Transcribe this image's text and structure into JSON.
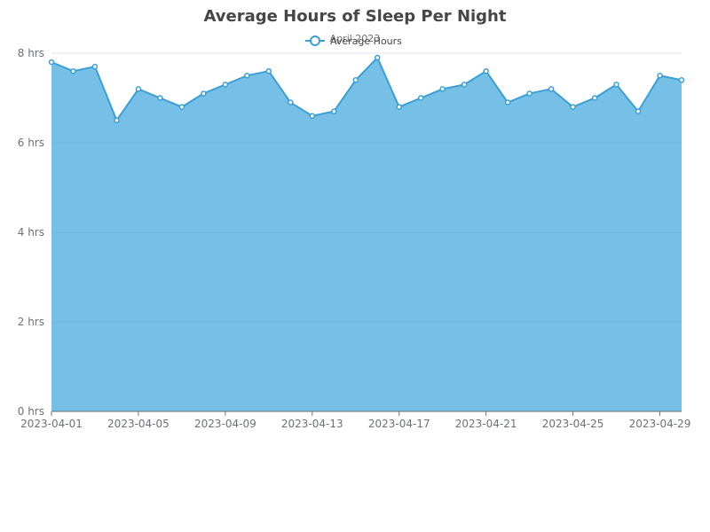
{
  "chart_data": {
    "type": "area",
    "title": "Average Hours of Sleep Per Night",
    "subtitle": "April 2023",
    "xlabel": "",
    "ylabel": "",
    "ylim": [
      0,
      8
    ],
    "y_ticks": [
      0,
      2,
      4,
      6,
      8
    ],
    "y_tick_labels": [
      "0 hrs",
      "2 hrs",
      "4 hrs",
      "6 hrs",
      "8 hrs"
    ],
    "x_tick_labels": [
      "2023-04-01",
      "2023-04-05",
      "2023-04-09",
      "2023-04-13",
      "2023-04-17",
      "2023-04-21",
      "2023-04-25",
      "2023-04-29"
    ],
    "legend_position": "top-center",
    "grid": true,
    "series": [
      {
        "name": "Average Hours",
        "color": "#3a9fd6",
        "fill": "#76bfe6",
        "x": [
          "2023-04-01",
          "2023-04-02",
          "2023-04-03",
          "2023-04-04",
          "2023-04-05",
          "2023-04-06",
          "2023-04-07",
          "2023-04-08",
          "2023-04-09",
          "2023-04-10",
          "2023-04-11",
          "2023-04-12",
          "2023-04-13",
          "2023-04-14",
          "2023-04-15",
          "2023-04-16",
          "2023-04-17",
          "2023-04-18",
          "2023-04-19",
          "2023-04-20",
          "2023-04-21",
          "2023-04-22",
          "2023-04-23",
          "2023-04-24",
          "2023-04-25",
          "2023-04-26",
          "2023-04-27",
          "2023-04-28",
          "2023-04-29",
          "2023-04-30"
        ],
        "values": [
          7.8,
          7.6,
          7.7,
          6.5,
          7.2,
          7.0,
          6.8,
          7.1,
          7.3,
          7.5,
          7.6,
          6.9,
          6.6,
          6.7,
          7.4,
          7.9,
          6.8,
          7.0,
          7.2,
          7.3,
          7.6,
          6.9,
          7.1,
          7.2,
          6.8,
          7.0,
          7.3,
          6.7,
          7.5,
          7.4
        ]
      }
    ]
  }
}
